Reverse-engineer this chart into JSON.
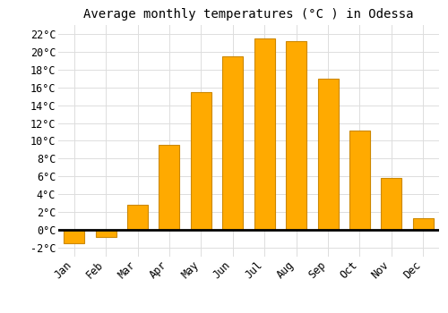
{
  "title": "Average monthly temperatures (°C ) in Odessa",
  "months": [
    "Jan",
    "Feb",
    "Mar",
    "Apr",
    "May",
    "Jun",
    "Jul",
    "Aug",
    "Sep",
    "Oct",
    "Nov",
    "Dec"
  ],
  "values": [
    -1.5,
    -0.8,
    2.8,
    9.5,
    15.5,
    19.5,
    21.5,
    21.2,
    17.0,
    11.2,
    5.8,
    1.3
  ],
  "bar_color": "#FFAA00",
  "bar_edge_color": "#CC8800",
  "background_color": "#FFFFFF",
  "grid_color": "#DDDDDD",
  "ylim": [
    -3,
    23
  ],
  "yticks": [
    -2,
    0,
    2,
    4,
    6,
    8,
    10,
    12,
    14,
    16,
    18,
    20,
    22
  ],
  "title_fontsize": 10,
  "tick_fontsize": 8.5,
  "font_family": "monospace"
}
